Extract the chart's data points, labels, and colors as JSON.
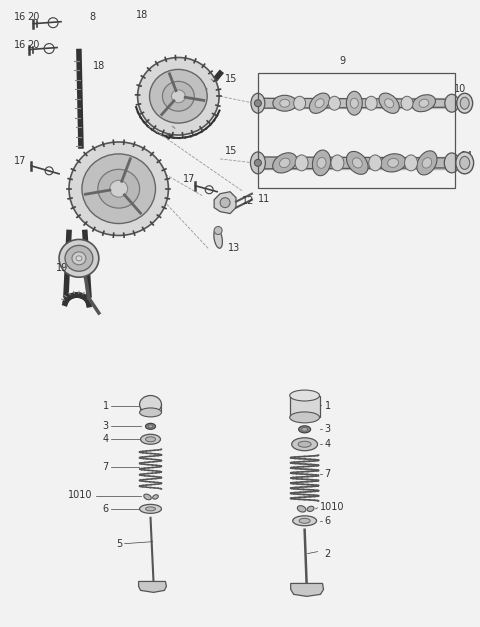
{
  "bg_color": "#f2f2f2",
  "line_color": "#404040",
  "fig_width": 4.8,
  "fig_height": 6.27,
  "dpi": 100
}
